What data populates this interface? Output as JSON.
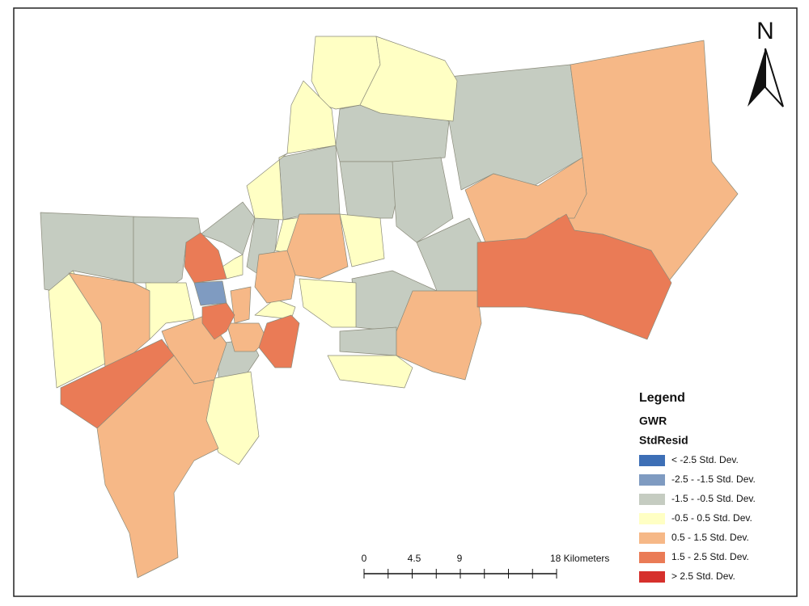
{
  "north_arrow": {
    "label": "N"
  },
  "legend": {
    "title": "Legend",
    "layer": "GWR",
    "field": "StdResid",
    "classes": [
      {
        "label": "< -2.5 Std. Dev.",
        "color": "#3d6fb6"
      },
      {
        "label": "-2.5 - -1.5 Std. Dev.",
        "color": "#7f9bc1"
      },
      {
        "label": "-1.5 - -0.5 Std. Dev.",
        "color": "#c5ccc1"
      },
      {
        "label": "-0.5 - 0.5 Std. Dev.",
        "color": "#ffffc4"
      },
      {
        "label": "0.5 - 1.5 Std. Dev.",
        "color": "#f6b887"
      },
      {
        "label": "1.5 - 2.5 Std. Dev.",
        "color": "#ea7b56"
      },
      {
        "label": "> 2.5 Std. Dev.",
        "color": "#d6302c"
      }
    ]
  },
  "scale_bar": {
    "labels": [
      "0",
      "4.5",
      "9",
      "18 Kilometers"
    ]
  }
}
